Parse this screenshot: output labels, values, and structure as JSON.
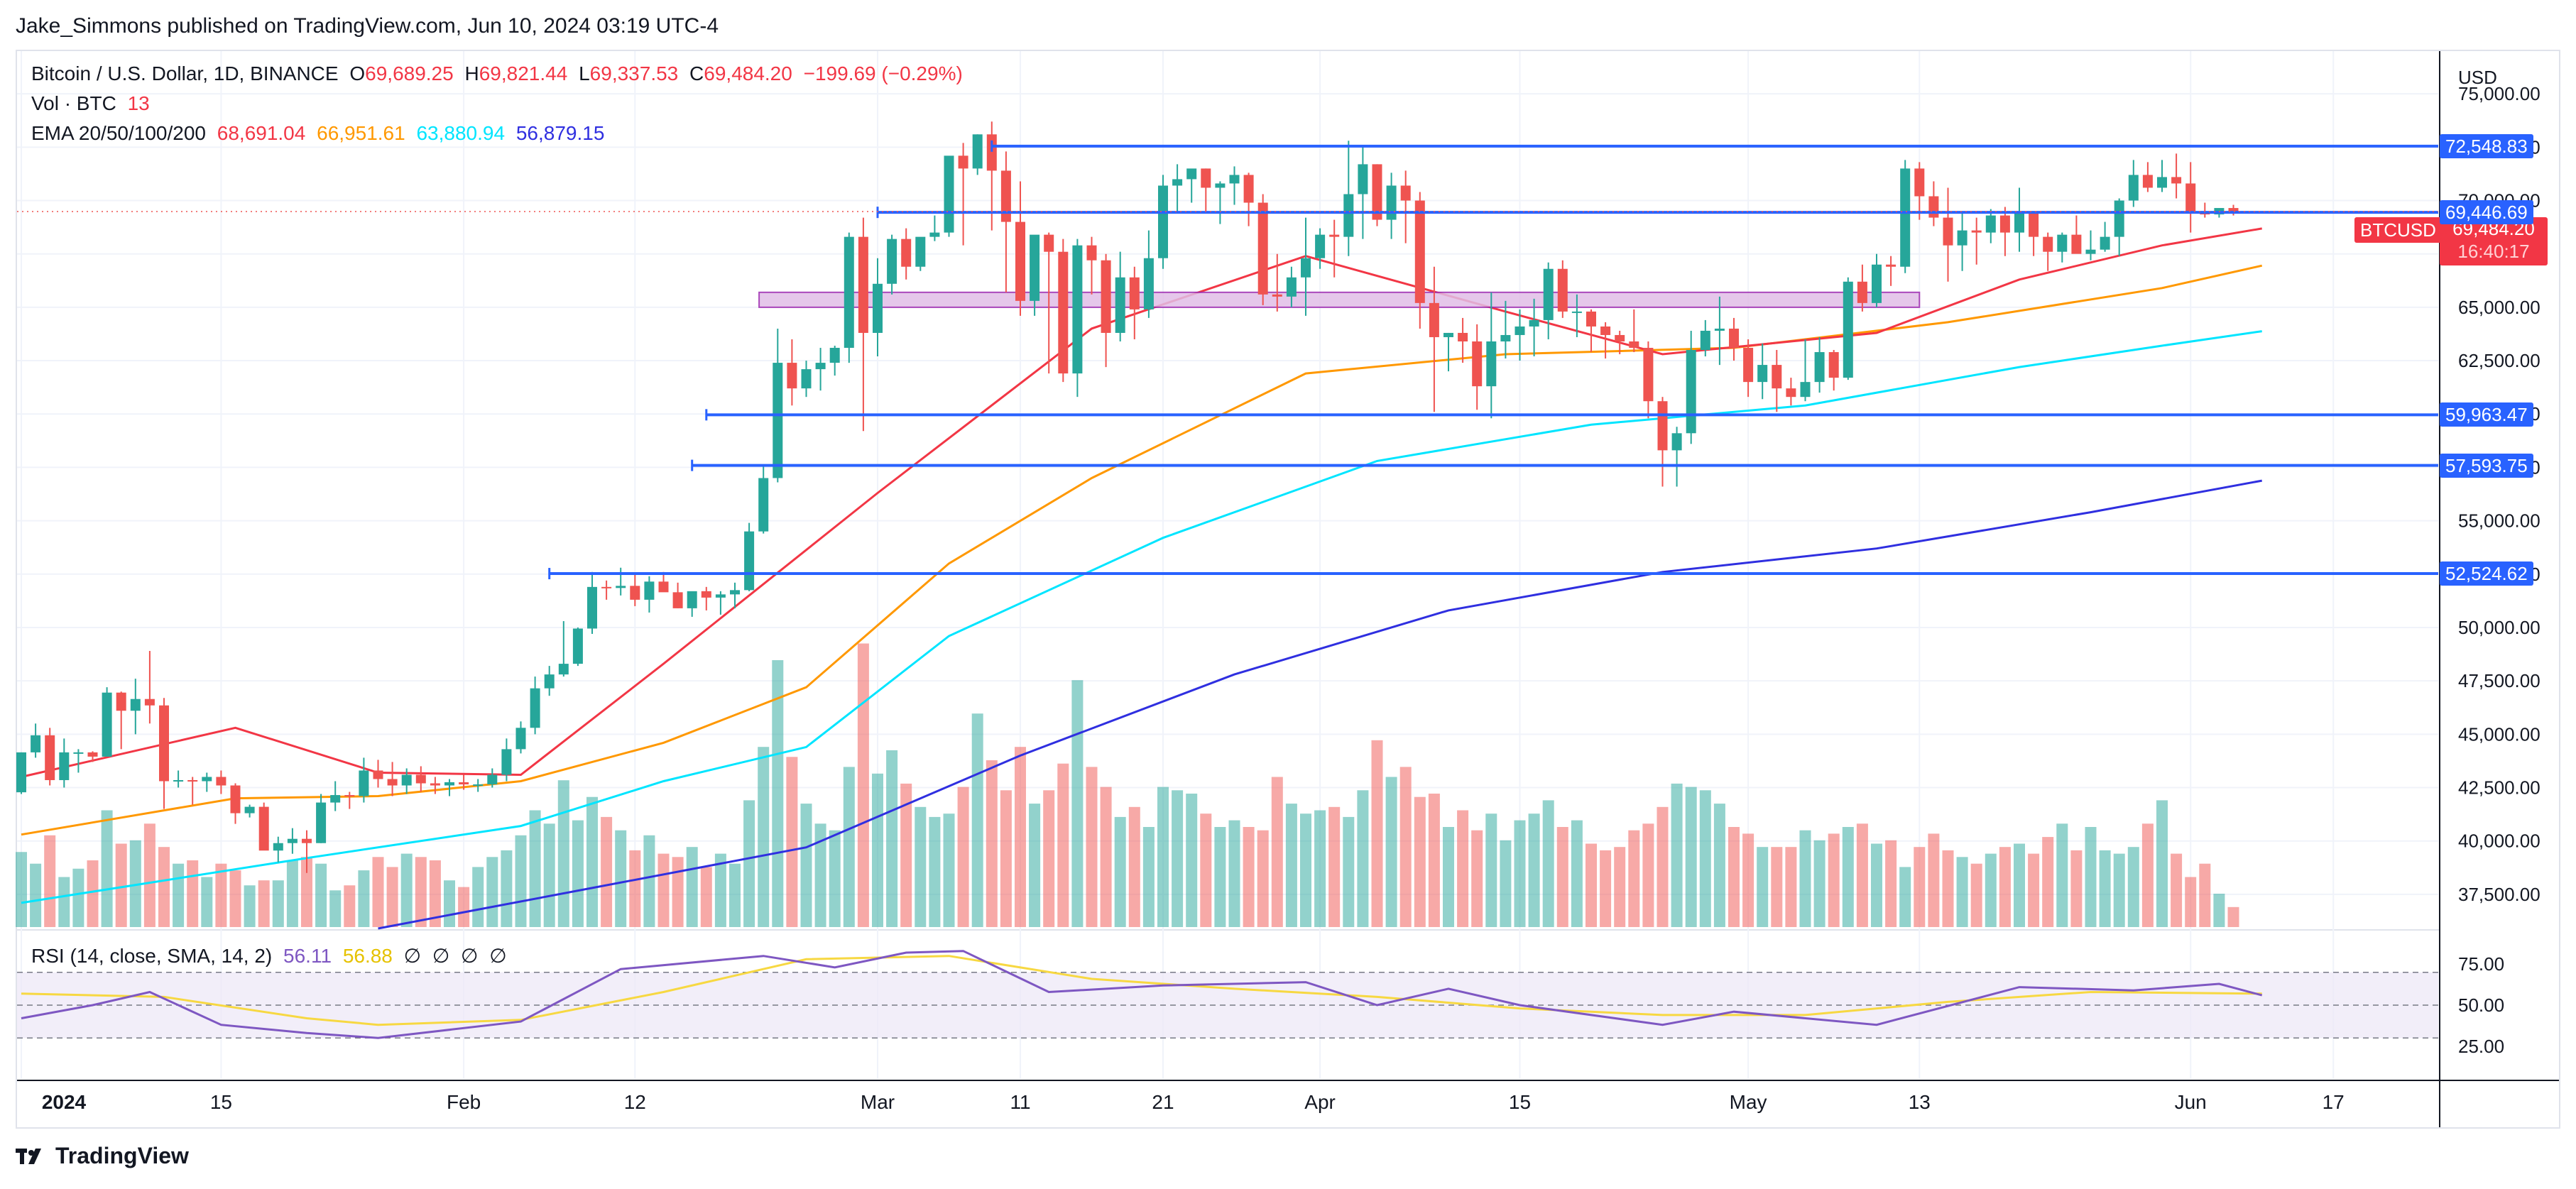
{
  "header": {
    "published": "Jake_Simmons published on TradingView.com, Jun 10, 2024 03:19 UTC-4"
  },
  "legend": {
    "symbol": "Bitcoin / U.S. Dollar, 1D, BINANCE",
    "open_label": "O",
    "open": "69,689.25",
    "high_label": "H",
    "high": "69,821.44",
    "low_label": "L",
    "low": "69,337.53",
    "close_label": "C",
    "close": "69,484.20",
    "change": "−199.69 (−0.29%)",
    "vol_label": "Vol · BTC",
    "vol_value": "13",
    "ema_label": "EMA 20/50/100/200",
    "ema_values": [
      "68,691.04",
      "66,951.61",
      "63,880.94",
      "56,879.15"
    ],
    "rsi_label": "RSI (14, close, SMA, 14, 2)",
    "rsi_values": [
      "56.11",
      "56.88"
    ],
    "rsi_empty": [
      "∅",
      "∅",
      "∅",
      "∅"
    ]
  },
  "price_axis": {
    "currency": "USD",
    "ticks": [
      "75,000.00",
      "72,500.00",
      "70,000.00",
      "67,500.00",
      "65,000.00",
      "62,500.00",
      "60,000.00",
      "57,500.00",
      "55,000.00",
      "52,500.00",
      "50,000.00",
      "47,500.00",
      "45,000.00",
      "42,500.00",
      "40,000.00",
      "37,500.00"
    ],
    "rsi_ticks": [
      "75.00",
      "50.00",
      "25.00"
    ]
  },
  "tags": {
    "symbol_tag": "BTCUSD",
    "last_price": "69,484.20",
    "countdown": "16:40:17"
  },
  "levels": [
    {
      "price": 72548.83,
      "label": "72,548.83"
    },
    {
      "price": 69446.69,
      "label": "69,446.69"
    },
    {
      "price": 59963.47,
      "label": "59,963.47"
    },
    {
      "price": 57593.75,
      "label": "57,593.75"
    },
    {
      "price": 52524.62,
      "label": "52,524.62"
    }
  ],
  "time_axis": [
    "2024",
    "15",
    "Feb",
    "12",
    "Mar",
    "11",
    "21",
    "Apr",
    "15",
    "May",
    "13",
    "Jun",
    "17"
  ],
  "footer": {
    "brand": "TradingView"
  },
  "colors": {
    "up": "#26a69a",
    "down": "#ef5350",
    "ema20": "#f23645",
    "ema50": "#ff9800",
    "ema100": "#00e5ff",
    "ema200": "#2f2fe0",
    "level": "#2962ff",
    "rsi": "#7e57c2",
    "rsi_ma": "#f7d842"
  },
  "chart_data": {
    "type": "candlestick",
    "title": "Bitcoin / U.S. Dollar, 1D, BINANCE",
    "x_range": [
      "2024-01-01",
      "2024-06-10"
    ],
    "ylim": [
      35900,
      77000
    ],
    "rsi_ylim": [
      5,
      95
    ],
    "candles_ohlc": [
      [
        42280,
        44150,
        42200,
        44150
      ],
      [
        44150,
        45500,
        43900,
        44950
      ],
      [
        44950,
        45300,
        42600,
        42850
      ],
      [
        42850,
        44800,
        42500,
        44150
      ],
      [
        44150,
        44300,
        43200,
        44150
      ],
      [
        44150,
        44200,
        43700,
        43950
      ],
      [
        43950,
        47200,
        43950,
        46950
      ],
      [
        46950,
        47000,
        44300,
        46100
      ],
      [
        46100,
        47600,
        45000,
        46650
      ],
      [
        46650,
        48900,
        45500,
        46350
      ],
      [
        46350,
        46700,
        41500,
        42800
      ],
      [
        42800,
        43300,
        42500,
        42850
      ],
      [
        42850,
        43000,
        41700,
        42800
      ],
      [
        42800,
        43200,
        42300,
        43000
      ],
      [
        43000,
        43300,
        42200,
        42600
      ],
      [
        42600,
        42700,
        40800,
        41300
      ],
      [
        41300,
        41700,
        41100,
        41600
      ],
      [
        41600,
        41800,
        39600,
        39550
      ],
      [
        39550,
        40200,
        39000,
        39900
      ],
      [
        39900,
        40600,
        39400,
        40100
      ],
      [
        40100,
        40500,
        38500,
        39900
      ],
      [
        39900,
        42200,
        39900,
        41800
      ],
      [
        41800,
        42800,
        41400,
        42150
      ],
      [
        42150,
        42300,
        41500,
        42100
      ],
      [
        42100,
        43900,
        41800,
        43300
      ],
      [
        43300,
        43800,
        42500,
        42900
      ],
      [
        42900,
        43700,
        42100,
        42600
      ],
      [
        42600,
        43400,
        42200,
        43100
      ],
      [
        43100,
        43500,
        42300,
        42700
      ],
      [
        42700,
        43000,
        42200,
        42600
      ],
      [
        42600,
        42900,
        42100,
        42750
      ],
      [
        42750,
        43100,
        42400,
        42650
      ],
      [
        42650,
        42900,
        42300,
        42650
      ],
      [
        42650,
        43400,
        42500,
        43100
      ],
      [
        43100,
        44800,
        42800,
        44300
      ],
      [
        44300,
        45600,
        44100,
        45300
      ],
      [
        45300,
        47700,
        45000,
        47150
      ],
      [
        47150,
        48200,
        46800,
        47800
      ],
      [
        47800,
        50300,
        47700,
        48300
      ],
      [
        48300,
        50000,
        48200,
        49950
      ],
      [
        49950,
        52600,
        49700,
        51900
      ],
      [
        51900,
        52200,
        51300,
        51850
      ],
      [
        51850,
        52800,
        51500,
        51950
      ],
      [
        51950,
        52500,
        51000,
        51300
      ],
      [
        51300,
        52400,
        50700,
        52150
      ],
      [
        52150,
        52600,
        51700,
        51650
      ],
      [
        51650,
        52100,
        50900,
        50900
      ],
      [
        50900,
        51600,
        50500,
        51700
      ],
      [
        51700,
        51900,
        50800,
        51400
      ],
      [
        51400,
        51700,
        50600,
        51550
      ],
      [
        51550,
        52100,
        50900,
        51750
      ],
      [
        51750,
        54900,
        51700,
        54500
      ],
      [
        54500,
        57600,
        54400,
        57000
      ],
      [
        57000,
        64000,
        56800,
        62400
      ],
      [
        62400,
        63500,
        60400,
        61200
      ],
      [
        61200,
        62500,
        60800,
        62100
      ],
      [
        62100,
        63100,
        61100,
        62400
      ],
      [
        62400,
        63200,
        61800,
        63100
      ],
      [
        63100,
        68500,
        62400,
        68300
      ],
      [
        68300,
        69200,
        59200,
        63800
      ],
      [
        63800,
        67300,
        62700,
        66100
      ],
      [
        66100,
        68400,
        65600,
        68200
      ],
      [
        68200,
        68700,
        66300,
        66900
      ],
      [
        66900,
        68200,
        66700,
        68300
      ],
      [
        68300,
        69300,
        68100,
        68500
      ],
      [
        68500,
        72000,
        68300,
        72100
      ],
      [
        72100,
        72700,
        67900,
        71500
      ],
      [
        71500,
        73100,
        71200,
        73100
      ],
      [
        73100,
        73700,
        68600,
        71400
      ],
      [
        71400,
        72300,
        65700,
        69000
      ],
      [
        69000,
        70900,
        64600,
        65300
      ],
      [
        65300,
        68000,
        64600,
        68400
      ],
      [
        68400,
        68500,
        61900,
        67600
      ],
      [
        67600,
        68200,
        61500,
        61900
      ],
      [
        61900,
        68200,
        60800,
        67900
      ],
      [
        67900,
        68300,
        65600,
        67200
      ],
      [
        67200,
        67500,
        62200,
        63800
      ],
      [
        63800,
        67600,
        63400,
        66400
      ],
      [
        66400,
        66900,
        63500,
        64900
      ],
      [
        64900,
        68600,
        64500,
        67300
      ],
      [
        67300,
        71200,
        66800,
        70700
      ],
      [
        70700,
        71700,
        69500,
        71000
      ],
      [
        71000,
        71400,
        69900,
        71500
      ],
      [
        71500,
        71500,
        69400,
        70600
      ],
      [
        70600,
        70900,
        68900,
        70800
      ],
      [
        70800,
        71600,
        69800,
        71200
      ],
      [
        71200,
        71300,
        68800,
        69900
      ],
      [
        69900,
        70300,
        65100,
        65600
      ],
      [
        65600,
        67500,
        64800,
        65500
      ],
      [
        65500,
        66900,
        65000,
        66400
      ],
      [
        66400,
        69200,
        64600,
        67300
      ],
      [
        67300,
        68700,
        66800,
        68400
      ],
      [
        68400,
        69100,
        66400,
        68300
      ],
      [
        68300,
        72800,
        67400,
        70300
      ],
      [
        70300,
        72500,
        68200,
        71700
      ],
      [
        71700,
        71700,
        68800,
        69100
      ],
      [
        69100,
        71300,
        68200,
        70700
      ],
      [
        70700,
        71400,
        68000,
        70000
      ],
      [
        70000,
        70400,
        64000,
        65200
      ],
      [
        65200,
        66900,
        60100,
        63600
      ],
      [
        63600,
        63800,
        62000,
        63800
      ],
      [
        63800,
        64500,
        62400,
        63400
      ],
      [
        63400,
        64200,
        60200,
        61300
      ],
      [
        61300,
        65700,
        59800,
        63400
      ],
      [
        63400,
        65300,
        62600,
        63700
      ],
      [
        63700,
        64900,
        62500,
        64100
      ],
      [
        64100,
        65400,
        62700,
        64400
      ],
      [
        64400,
        67100,
        63500,
        66800
      ],
      [
        66800,
        67200,
        64500,
        64800
      ],
      [
        64800,
        65600,
        63600,
        64800
      ],
      [
        64800,
        64900,
        62900,
        64100
      ],
      [
        64100,
        64300,
        62600,
        63700
      ],
      [
        63700,
        63900,
        62800,
        63400
      ],
      [
        63400,
        64900,
        62900,
        63100
      ],
      [
        63100,
        63400,
        59800,
        60600
      ],
      [
        60600,
        60800,
        56600,
        58300
      ],
      [
        58300,
        59400,
        56600,
        59100
      ],
      [
        59100,
        63900,
        58600,
        63000
      ],
      [
        63000,
        64400,
        62700,
        63900
      ],
      [
        63900,
        65500,
        62300,
        64000
      ],
      [
        64000,
        64500,
        62500,
        63100
      ],
      [
        63100,
        63500,
        60800,
        61500
      ],
      [
        61500,
        63300,
        60700,
        62300
      ],
      [
        62300,
        63000,
        60100,
        61200
      ],
      [
        61200,
        61700,
        60400,
        60800
      ],
      [
        60800,
        63500,
        60600,
        61500
      ],
      [
        61500,
        63600,
        61000,
        62900
      ],
      [
        62900,
        63000,
        61100,
        61700
      ],
      [
        61700,
        66400,
        61600,
        66200
      ],
      [
        66200,
        67000,
        64800,
        65200
      ],
      [
        65200,
        67500,
        65000,
        67000
      ],
      [
        67000,
        67400,
        66000,
        66900
      ],
      [
        66900,
        71900,
        66600,
        71500
      ],
      [
        71500,
        71800,
        69100,
        70200
      ],
      [
        70200,
        70900,
        68800,
        69200
      ],
      [
        69200,
        70600,
        66200,
        67900
      ],
      [
        67900,
        69500,
        66700,
        68600
      ],
      [
        68600,
        69200,
        67000,
        68500
      ],
      [
        68500,
        69600,
        68000,
        69300
      ],
      [
        69300,
        69700,
        67400,
        68500
      ],
      [
        68500,
        70600,
        67600,
        69400
      ],
      [
        69400,
        69500,
        67400,
        68300
      ],
      [
        68300,
        68500,
        66700,
        67600
      ],
      [
        67600,
        68500,
        67100,
        68400
      ],
      [
        68400,
        69300,
        67800,
        67500
      ],
      [
        67500,
        68600,
        67200,
        67700
      ],
      [
        67700,
        69000,
        67600,
        68300
      ],
      [
        68300,
        70100,
        67400,
        70000
      ],
      [
        70000,
        71900,
        69700,
        71200
      ],
      [
        71200,
        71800,
        70400,
        70600
      ],
      [
        70600,
        71900,
        70400,
        71100
      ],
      [
        71100,
        72200,
        70100,
        70800
      ],
      [
        70800,
        71800,
        68500,
        69500
      ],
      [
        69500,
        69900,
        69200,
        69350
      ],
      [
        69350,
        69600,
        69200,
        69650
      ],
      [
        69650,
        69800,
        69300,
        69484
      ]
    ],
    "volume_pct": [
      45,
      38,
      55,
      30,
      35,
      40,
      70,
      50,
      52,
      62,
      48,
      38,
      40,
      30,
      38,
      34,
      25,
      28,
      28,
      40,
      42,
      38,
      22,
      25,
      34,
      42,
      36,
      44,
      42,
      40,
      28,
      24,
      36,
      42,
      46,
      55,
      70,
      62,
      88,
      64,
      78,
      66,
      58,
      46,
      55,
      44,
      42,
      48,
      36,
      44,
      38,
      76,
      108,
      160,
      102,
      74,
      62,
      58,
      96,
      170,
      92,
      106,
      86,
      72,
      66,
      68,
      84,
      128,
      100,
      82,
      108,
      74,
      82,
      98,
      148,
      96,
      84,
      66,
      72,
      60,
      84,
      82,
      80,
      68,
      60,
      64,
      60,
      58,
      90,
      74,
      68,
      70,
      72,
      66,
      82,
      112,
      90,
      96,
      78,
      80,
      60,
      70,
      58,
      68,
      52,
      64,
      68,
      76,
      60,
      64,
      50,
      46,
      48,
      58,
      62,
      72,
      86,
      84,
      82,
      74,
      60,
      56,
      48,
      48,
      48,
      58,
      52,
      56,
      60,
      62,
      50,
      52,
      36,
      48,
      56,
      46,
      42,
      38,
      44,
      48,
      50,
      44,
      54,
      62,
      46,
      60,
      46,
      44,
      48,
      62,
      76,
      44,
      30,
      38,
      20,
      12,
      6,
      4
    ],
    "volume_up": [],
    "ema20": [
      [
        0,
        43000
      ],
      [
        15,
        45300
      ],
      [
        25,
        43200
      ],
      [
        35,
        43100
      ],
      [
        45,
        48300
      ],
      [
        60,
        56300
      ],
      [
        75,
        64000
      ],
      [
        90,
        67400
      ],
      [
        104,
        64800
      ],
      [
        115,
        62800
      ],
      [
        130,
        63800
      ],
      [
        140,
        66300
      ],
      [
        150,
        67900
      ],
      [
        157,
        68690
      ]
    ],
    "ema50": [
      [
        0,
        40300
      ],
      [
        15,
        42000
      ],
      [
        25,
        42100
      ],
      [
        35,
        42800
      ],
      [
        45,
        44600
      ],
      [
        55,
        47200
      ],
      [
        65,
        53000
      ],
      [
        75,
        57000
      ],
      [
        90,
        61900
      ],
      [
        104,
        62800
      ],
      [
        120,
        63100
      ],
      [
        135,
        64300
      ],
      [
        150,
        65900
      ],
      [
        157,
        66950
      ]
    ],
    "ema100": [
      [
        0,
        37100
      ],
      [
        20,
        39200
      ],
      [
        35,
        40700
      ],
      [
        45,
        42800
      ],
      [
        55,
        44400
      ],
      [
        65,
        49600
      ],
      [
        80,
        54200
      ],
      [
        95,
        57800
      ],
      [
        110,
        59500
      ],
      [
        125,
        60400
      ],
      [
        140,
        62200
      ],
      [
        150,
        63200
      ],
      [
        157,
        63880
      ]
    ],
    "ema200": [
      [
        25,
        35900
      ],
      [
        40,
        37800
      ],
      [
        55,
        39700
      ],
      [
        70,
        44000
      ],
      [
        85,
        47800
      ],
      [
        100,
        50800
      ],
      [
        115,
        52600
      ],
      [
        130,
        53700
      ],
      [
        145,
        55400
      ],
      [
        157,
        56880
      ]
    ],
    "rsi": [
      [
        0,
        42
      ],
      [
        5,
        50
      ],
      [
        9,
        58
      ],
      [
        14,
        38
      ],
      [
        20,
        33
      ],
      [
        25,
        30
      ],
      [
        35,
        40
      ],
      [
        42,
        72
      ],
      [
        52,
        80
      ],
      [
        57,
        73
      ],
      [
        62,
        82
      ],
      [
        66,
        83
      ],
      [
        72,
        58
      ],
      [
        80,
        62
      ],
      [
        90,
        64
      ],
      [
        95,
        50
      ],
      [
        100,
        60
      ],
      [
        105,
        50
      ],
      [
        115,
        38
      ],
      [
        120,
        46
      ],
      [
        130,
        38
      ],
      [
        140,
        61
      ],
      [
        148,
        59
      ],
      [
        154,
        63
      ],
      [
        157,
        56
      ]
    ],
    "rsi_ma": [
      [
        0,
        57
      ],
      [
        10,
        55
      ],
      [
        20,
        42
      ],
      [
        25,
        38
      ],
      [
        35,
        41
      ],
      [
        45,
        58
      ],
      [
        55,
        78
      ],
      [
        65,
        80
      ],
      [
        75,
        66
      ],
      [
        85,
        60
      ],
      [
        95,
        55
      ],
      [
        105,
        48
      ],
      [
        115,
        44
      ],
      [
        125,
        44
      ],
      [
        135,
        52
      ],
      [
        145,
        58
      ],
      [
        157,
        57
      ]
    ],
    "rsi_bands": [
      70,
      50,
      30
    ]
  }
}
